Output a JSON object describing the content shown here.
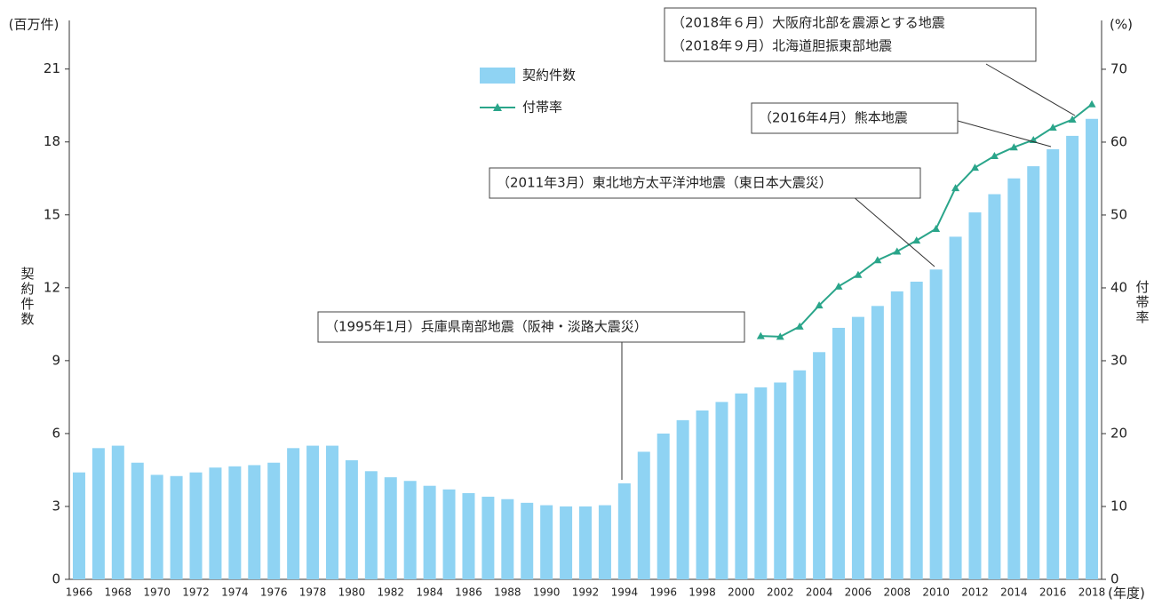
{
  "chart_data": {
    "type": "bar",
    "y_unit": "(百万件)",
    "y2_unit": "(%)",
    "x_unit": "(年度)",
    "ylabel": "契約件数",
    "y2label": "付帯率",
    "categories": [
      "1966",
      null,
      "1968",
      null,
      "1970",
      null,
      "1972",
      null,
      "1974",
      null,
      "1976",
      null,
      "1978",
      null,
      "1980",
      null,
      "1982",
      null,
      "1984",
      null,
      "1986",
      null,
      "1988",
      null,
      "1990",
      null,
      "1992",
      null,
      "1994",
      null,
      "1996",
      null,
      "1998",
      null,
      "2000",
      null,
      "2002",
      null,
      "2004",
      null,
      "2006",
      null,
      "2008",
      null,
      "2010",
      null,
      "2012",
      null,
      "2014",
      null,
      "2016",
      null,
      "2018"
    ],
    "series": [
      {
        "name": "契約件数",
        "color": "#8fd3f3",
        "values": [
          4.4,
          5.4,
          5.5,
          4.8,
          4.3,
          4.25,
          4.4,
          4.6,
          4.65,
          4.7,
          4.8,
          5.4,
          5.5,
          5.5,
          4.9,
          4.45,
          4.2,
          4.05,
          3.85,
          3.7,
          3.55,
          3.4,
          3.3,
          3.15,
          3.05,
          3.0,
          3.0,
          3.05,
          3.95,
          5.25,
          6.0,
          6.55,
          6.95,
          7.3,
          7.65,
          7.9,
          8.1,
          8.6,
          9.35,
          10.35,
          10.8,
          11.25,
          11.85,
          12.25,
          12.75,
          14.1,
          15.1,
          15.85,
          16.5,
          17.0,
          17.7,
          18.25,
          18.95
        ]
      },
      {
        "name": "付帯率",
        "color": "#2aa58a",
        "axis": "y2",
        "type": "line",
        "values": [
          null,
          null,
          null,
          null,
          null,
          null,
          null,
          null,
          null,
          null,
          null,
          null,
          null,
          null,
          null,
          null,
          null,
          null,
          null,
          null,
          null,
          null,
          null,
          null,
          null,
          null,
          null,
          null,
          null,
          null,
          null,
          null,
          null,
          null,
          null,
          33.4,
          33.3,
          34.7,
          37.6,
          40.2,
          41.8,
          43.8,
          45.0,
          46.5,
          48.1,
          53.7,
          56.5,
          58.1,
          59.3,
          60.3,
          62.0,
          63.1,
          65.2
        ]
      }
    ],
    "ylim": [
      0,
      23
    ],
    "yticks": [
      0,
      3,
      6,
      9,
      12,
      15,
      18,
      21
    ],
    "y2lim": [
      0,
      76.7
    ],
    "y2ticks": [
      0,
      10,
      20,
      30,
      40,
      50,
      60,
      70
    ],
    "annotations": [
      [
        "（1995年1月）兵庫県南部地震（阪神・淡路大震災）"
      ],
      [
        "（2011年3月）東北地方太平洋沖地震（東日本大震災）"
      ],
      [
        "（2016年4月）熊本地震"
      ],
      [
        "（2018年６月）大阪府北部を震源とする地震",
        "（2018年９月）北海道胆振東部地震"
      ]
    ]
  }
}
